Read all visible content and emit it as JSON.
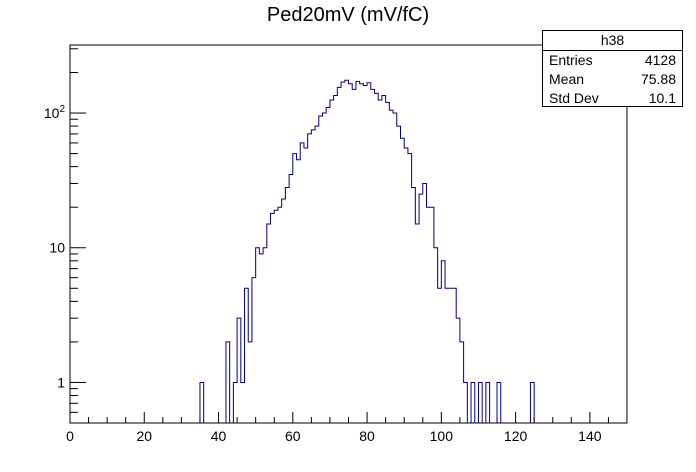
{
  "chart_data": {
    "type": "bar",
    "title": "Ped20mV (mV/fC)",
    "xlabel": "",
    "ylabel": "",
    "xlim": [
      0,
      150
    ],
    "ylim": [
      0.5,
      320
    ],
    "y_scale": "log",
    "grid": false,
    "x_ticks": [
      "0",
      "20",
      "40",
      "60",
      "80",
      "100",
      "120",
      "140"
    ],
    "y_ticks": [
      "1",
      "10",
      "10^2"
    ],
    "bin_width": 1,
    "bins": [
      {
        "x": 35,
        "y": 1
      },
      {
        "x": 42,
        "y": 2
      },
      {
        "x": 44,
        "y": 1
      },
      {
        "x": 45,
        "y": 3
      },
      {
        "x": 46,
        "y": 1
      },
      {
        "x": 47,
        "y": 5
      },
      {
        "x": 48,
        "y": 2
      },
      {
        "x": 49,
        "y": 6
      },
      {
        "x": 50,
        "y": 10
      },
      {
        "x": 51,
        "y": 9
      },
      {
        "x": 52,
        "y": 10
      },
      {
        "x": 53,
        "y": 15
      },
      {
        "x": 54,
        "y": 18
      },
      {
        "x": 55,
        "y": 19
      },
      {
        "x": 56,
        "y": 20
      },
      {
        "x": 57,
        "y": 23
      },
      {
        "x": 58,
        "y": 28
      },
      {
        "x": 59,
        "y": 35
      },
      {
        "x": 60,
        "y": 50
      },
      {
        "x": 61,
        "y": 45
      },
      {
        "x": 62,
        "y": 60
      },
      {
        "x": 63,
        "y": 55
      },
      {
        "x": 64,
        "y": 70
      },
      {
        "x": 65,
        "y": 75
      },
      {
        "x": 66,
        "y": 80
      },
      {
        "x": 67,
        "y": 95
      },
      {
        "x": 68,
        "y": 100
      },
      {
        "x": 69,
        "y": 110
      },
      {
        "x": 70,
        "y": 125
      },
      {
        "x": 71,
        "y": 135
      },
      {
        "x": 72,
        "y": 155
      },
      {
        "x": 73,
        "y": 170
      },
      {
        "x": 74,
        "y": 175
      },
      {
        "x": 75,
        "y": 165
      },
      {
        "x": 76,
        "y": 150
      },
      {
        "x": 77,
        "y": 172
      },
      {
        "x": 78,
        "y": 165
      },
      {
        "x": 79,
        "y": 160
      },
      {
        "x": 80,
        "y": 168
      },
      {
        "x": 81,
        "y": 150
      },
      {
        "x": 82,
        "y": 140
      },
      {
        "x": 83,
        "y": 125
      },
      {
        "x": 84,
        "y": 135
      },
      {
        "x": 85,
        "y": 120
      },
      {
        "x": 86,
        "y": 105
      },
      {
        "x": 87,
        "y": 100
      },
      {
        "x": 88,
        "y": 80
      },
      {
        "x": 89,
        "y": 65
      },
      {
        "x": 90,
        "y": 55
      },
      {
        "x": 91,
        "y": 50
      },
      {
        "x": 92,
        "y": 28
      },
      {
        "x": 93,
        "y": 15
      },
      {
        "x": 94,
        "y": 25
      },
      {
        "x": 95,
        "y": 30
      },
      {
        "x": 96,
        "y": 20
      },
      {
        "x": 97,
        "y": 20
      },
      {
        "x": 98,
        "y": 10
      },
      {
        "x": 99,
        "y": 5
      },
      {
        "x": 100,
        "y": 8
      },
      {
        "x": 101,
        "y": 5
      },
      {
        "x": 102,
        "y": 5
      },
      {
        "x": 103,
        "y": 5
      },
      {
        "x": 104,
        "y": 3
      },
      {
        "x": 105,
        "y": 2
      },
      {
        "x": 106,
        "y": 1
      },
      {
        "x": 108,
        "y": 1
      },
      {
        "x": 110,
        "y": 1
      },
      {
        "x": 112,
        "y": 1
      },
      {
        "x": 115,
        "y": 1
      },
      {
        "x": 124,
        "y": 1
      }
    ],
    "stats_box": {
      "name": "h38",
      "rows": [
        {
          "label": "Entries",
          "value": "4128"
        },
        {
          "label": "Mean",
          "value": "75.88"
        },
        {
          "label": "Std Dev",
          "value": "10.1"
        }
      ]
    },
    "line_color": "#000080"
  }
}
